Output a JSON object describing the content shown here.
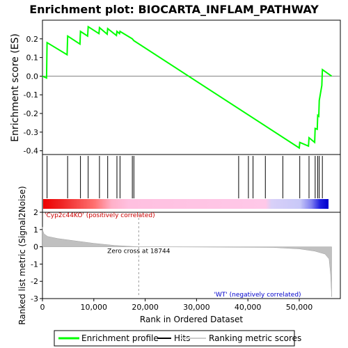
{
  "title": "Enrichment plot: BIOCARTA_INFLAM_PATHWAY",
  "colors": {
    "profile": "#00ff00",
    "hits": "#000000",
    "metric": "#c0c0c0",
    "positive_label": "#cc0000",
    "negative_label": "#0000cc"
  },
  "chart_data": [
    {
      "type": "line",
      "name": "enrichment-profile",
      "ylabel": "Enrichment score (ES)",
      "xlim": [
        0,
        58000
      ],
      "ylim": [
        -0.42,
        0.3
      ],
      "yticks": [
        "0.2",
        "0.1",
        "0.0",
        "-0.1",
        "-0.2",
        "-0.3",
        "-0.4"
      ],
      "ytick_values": [
        0.2,
        0.1,
        0.0,
        -0.1,
        -0.2,
        -0.3,
        -0.4
      ],
      "series": [
        {
          "x": [
            0,
            800,
            900,
            4800,
            4900,
            7300,
            7400,
            8800,
            8900,
            11000,
            11100,
            12600,
            12700,
            14400,
            14500,
            15000,
            15100,
            17500,
            17800,
            50000,
            50100,
            51800,
            51900,
            53000,
            53100,
            53500,
            53600,
            53800,
            53900,
            54400,
            54500,
            56300
          ],
          "y": [
            0.0,
            -0.01,
            0.18,
            0.115,
            0.215,
            0.172,
            0.24,
            0.215,
            0.265,
            0.228,
            0.26,
            0.225,
            0.255,
            0.218,
            0.24,
            0.228,
            0.24,
            0.2,
            0.19,
            -0.385,
            -0.355,
            -0.375,
            -0.33,
            -0.355,
            -0.28,
            -0.285,
            -0.21,
            -0.215,
            -0.13,
            -0.05,
            0.035,
            0.0
          ]
        }
      ]
    },
    {
      "type": "scatter",
      "name": "hits",
      "x": [
        900,
        4900,
        7400,
        8900,
        11100,
        12700,
        14500,
        15100,
        17500,
        17800,
        38200,
        40100,
        41000,
        43400,
        46800,
        50100,
        51900,
        53100,
        53600,
        53900,
        54500
      ]
    },
    {
      "type": "area",
      "name": "ranked-list-metric",
      "ylabel": "Ranked list metric (Signal2Noise)",
      "xlabel": "Rank in Ordered Dataset",
      "xlim": [
        0,
        58000
      ],
      "ylim": [
        -3,
        2
      ],
      "yticks": [
        "2",
        "1",
        "0",
        "-1",
        "-2",
        "-3"
      ],
      "ytick_values": [
        2,
        1,
        0,
        -1,
        -2,
        -3
      ],
      "xticks": [
        "0",
        "10,000",
        "20,000",
        "30,000",
        "40,000",
        "50,000"
      ],
      "xtick_values": [
        0,
        10000,
        20000,
        30000,
        40000,
        50000
      ],
      "series": [
        {
          "x": [
            0,
            50,
            300,
            1000,
            3000,
            6000,
            10000,
            14000,
            18744,
            25000,
            35000,
            45000,
            50000,
            53000,
            55000,
            55800,
            56100,
            56300
          ],
          "y": [
            1.15,
            0.95,
            0.75,
            0.6,
            0.48,
            0.36,
            0.2,
            0.08,
            0.0,
            -0.01,
            -0.02,
            -0.04,
            -0.12,
            -0.25,
            -0.42,
            -0.7,
            -1.6,
            -2.9
          ]
        }
      ],
      "annotations": {
        "zero_cross": "Zero cross at 18744",
        "zero_cross_x": 18744,
        "positive": "'Cyp2c44KO' (positively correlated)",
        "negative": "'WT' (negatively correlated)"
      }
    }
  ],
  "legend": {
    "items": [
      "Enrichment profile",
      "Hits",
      "Ranking metric scores"
    ]
  }
}
